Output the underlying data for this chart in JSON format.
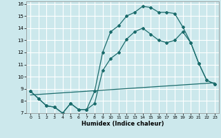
{
  "xlabel": "Humidex (Indice chaleur)",
  "bg_color": "#cce8ec",
  "grid_color": "#ffffff",
  "line_color": "#1a6b6b",
  "xlim": [
    -0.5,
    23.5
  ],
  "ylim": [
    7,
    16.2
  ],
  "xticks": [
    0,
    1,
    2,
    3,
    4,
    5,
    6,
    7,
    8,
    9,
    10,
    11,
    12,
    13,
    14,
    15,
    16,
    17,
    18,
    19,
    20,
    21,
    22,
    23
  ],
  "yticks": [
    7,
    8,
    9,
    10,
    11,
    12,
    13,
    14,
    15,
    16
  ],
  "line1_top": {
    "x": [
      0,
      1,
      2,
      3,
      4,
      5,
      6,
      7,
      8,
      9,
      10,
      11,
      12,
      13,
      14,
      15,
      16,
      17,
      18,
      19,
      20,
      21,
      22,
      23
    ],
    "y": [
      8.8,
      8.2,
      7.6,
      7.5,
      7.0,
      7.8,
      7.3,
      7.3,
      8.8,
      12.0,
      13.7,
      14.2,
      15.0,
      15.3,
      15.8,
      15.7,
      15.3,
      15.3,
      15.2,
      14.1,
      12.8,
      11.1,
      9.7,
      9.4
    ]
  },
  "line2_mid": {
    "x": [
      0,
      1,
      2,
      3,
      4,
      5,
      6,
      7,
      8,
      9,
      10,
      11,
      12,
      13,
      14,
      15,
      16,
      17,
      18,
      19,
      20,
      21,
      22,
      23
    ],
    "y": [
      8.8,
      8.2,
      7.6,
      7.5,
      7.0,
      7.8,
      7.3,
      7.3,
      7.8,
      10.5,
      11.5,
      12.0,
      13.1,
      13.7,
      14.0,
      13.5,
      13.0,
      12.8,
      13.0,
      13.7,
      12.8,
      11.1,
      9.7,
      9.4
    ]
  },
  "line3_base": {
    "x": [
      0,
      23
    ],
    "y": [
      8.5,
      9.5
    ]
  }
}
